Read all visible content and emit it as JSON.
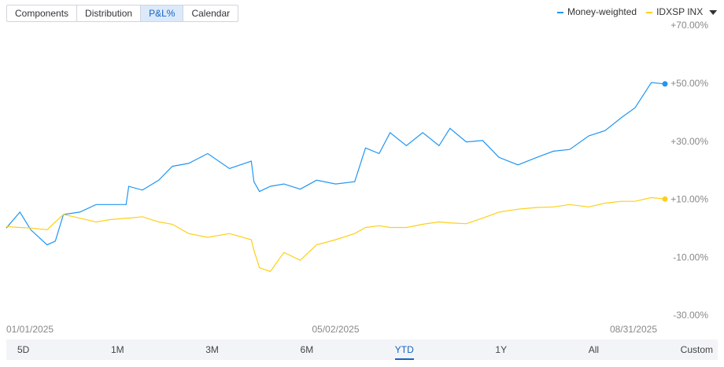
{
  "tabs": [
    "Components",
    "Distribution",
    "P&L%",
    "Calendar"
  ],
  "active_tab": 2,
  "ranges": [
    "5D",
    "1M",
    "3M",
    "6M",
    "YTD",
    "1Y",
    "All",
    "Custom"
  ],
  "active_range": 4,
  "chart_data": {
    "type": "line",
    "x": [
      "01/01/2025",
      "01/06/2025",
      "01/10/2025",
      "01/16/2025",
      "01/19/2025",
      "01/22/2025",
      "01/28/2025",
      "02/03/2025",
      "02/08/2025",
      "02/14/2025",
      "02/15/2025",
      "02/20/2025",
      "02/26/2025",
      "03/03/2025",
      "03/09/2025",
      "03/16/2025",
      "03/24/2025",
      "04/01/2025",
      "04/02/2025",
      "04/04/2025",
      "04/08/2025",
      "04/13/2025",
      "04/19/2025",
      "04/25/2025",
      "05/02/2025",
      "05/09/2025",
      "05/13/2025",
      "05/18/2025",
      "05/22/2025",
      "05/28/2025",
      "06/03/2025",
      "06/09/2025",
      "06/13/2025",
      "06/19/2025",
      "06/25/2025",
      "07/01/2025",
      "07/08/2025",
      "07/15/2025",
      "07/21/2025",
      "07/27/2025",
      "08/03/2025",
      "08/09/2025",
      "08/15/2025",
      "08/20/2025",
      "08/26/2025",
      "08/31/2025"
    ],
    "series": [
      {
        "name": "Money-weighted",
        "color": "#2196f3",
        "values": [
          0.3,
          5.8,
          -0.3,
          -5.5,
          -4.2,
          5,
          5.8,
          8.4,
          8.4,
          8.4,
          14.7,
          13.4,
          16.8,
          21.6,
          22.6,
          26,
          20.8,
          23.4,
          16.3,
          12.9,
          14.7,
          15.5,
          13.7,
          16.8,
          15.5,
          16.3,
          27.9,
          26,
          33.2,
          28.7,
          33.2,
          28.7,
          34.7,
          30,
          30.5,
          24.7,
          22.1,
          24.7,
          26.8,
          27.4,
          32.1,
          33.9,
          38.4,
          41.8,
          50.5,
          50
        ]
      },
      {
        "name": "IDXSP INX",
        "color": "#fdd017",
        "values": [
          0.8,
          0.5,
          0.3,
          -0.3,
          2.4,
          5,
          3.7,
          2.4,
          3.2,
          3.7,
          3.7,
          4.2,
          2.4,
          1.6,
          -1.6,
          -2.9,
          -1.6,
          -3.7,
          -7.4,
          -13.4,
          -14.7,
          -8.1,
          -10.8,
          -5.5,
          -3.7,
          -1.6,
          0.5,
          1.1,
          0.5,
          0.5,
          1.6,
          2.4,
          2.1,
          1.8,
          3.7,
          5.8,
          6.8,
          7.4,
          7.6,
          8.4,
          7.6,
          8.9,
          9.5,
          9.5,
          10.8,
          10.3
        ]
      }
    ],
    "xlim": [
      "01/01/2025",
      "08/31/2025"
    ],
    "xticks": [
      "01/01/2025",
      "05/02/2025",
      "08/31/2025"
    ],
    "ylim": [
      -30,
      70
    ],
    "yticks": [
      {
        "value": -30,
        "label": "-30.00%"
      },
      {
        "value": -10,
        "label": "-10.00%"
      },
      {
        "value": 10,
        "label": "+10.00%"
      },
      {
        "value": 30,
        "label": "+30.00%"
      },
      {
        "value": 50,
        "label": "+50.00%"
      },
      {
        "value": 70,
        "label": "+70.00%"
      }
    ],
    "legend": "top-right"
  }
}
